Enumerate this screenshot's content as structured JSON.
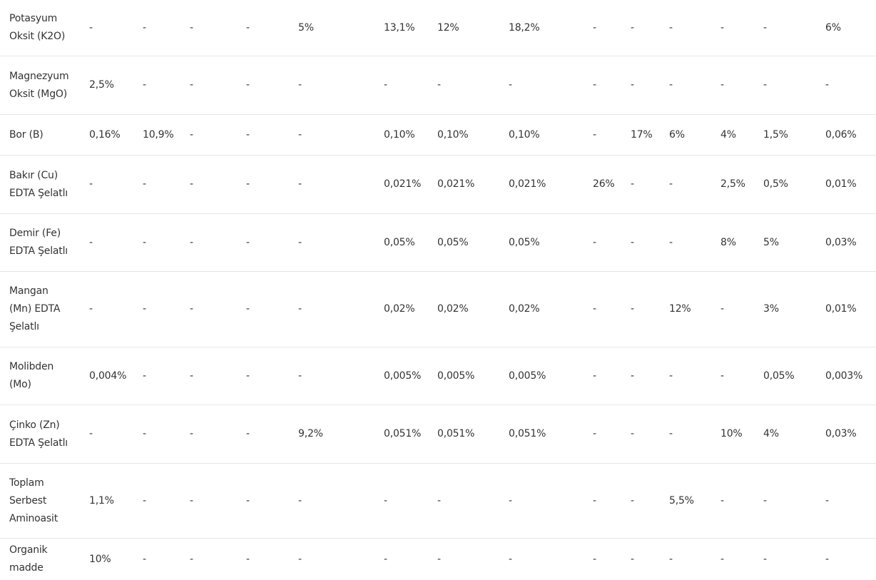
{
  "table": {
    "rows": [
      {
        "label_lines": [
          "Potasyum",
          "Oksit (K2O)"
        ],
        "values": [
          "-",
          "-",
          "-",
          "-",
          "5%",
          "13,1%",
          "12%",
          "18,2%",
          "-",
          "-",
          "-",
          "-",
          "-",
          "6%"
        ]
      },
      {
        "label_lines": [
          "Magnezyum",
          "Oksit (MgO)"
        ],
        "values": [
          "2,5%",
          "-",
          "-",
          "-",
          "-",
          "-",
          "-",
          "-",
          "-",
          "-",
          "-",
          "-",
          "-",
          "-"
        ]
      },
      {
        "label_lines": [
          "Bor (B)"
        ],
        "values": [
          "0,16%",
          "10,9%",
          "-",
          "-",
          "-",
          "0,10%",
          "0,10%",
          "0,10%",
          "-",
          "17%",
          "6%",
          "4%",
          "1,5%",
          "0,06%"
        ]
      },
      {
        "label_lines": [
          "Bakır (Cu)",
          "EDTA Şelatlı"
        ],
        "values": [
          "-",
          "-",
          "-",
          "-",
          "-",
          "0,021%",
          "0,021%",
          "0,021%",
          "26%",
          "-",
          "-",
          "2,5%",
          "0,5%",
          "0,01%"
        ]
      },
      {
        "label_lines": [
          "Demir (Fe)",
          "EDTA Şelatlı"
        ],
        "values": [
          "-",
          "-",
          "-",
          "-",
          "-",
          "0,05%",
          "0,05%",
          "0,05%",
          "-",
          "-",
          "-",
          "8%",
          "5%",
          "0,03%"
        ]
      },
      {
        "label_lines": [
          "Mangan",
          "(Mn) EDTA",
          "Şelatlı"
        ],
        "values": [
          "-",
          "-",
          "-",
          "-",
          "-",
          "0,02%",
          "0,02%",
          "0,02%",
          "-",
          "-",
          "12%",
          "-",
          "3%",
          "0,01%"
        ]
      },
      {
        "label_lines": [
          "Molibden",
          "(Mo)"
        ],
        "values": [
          "0,004%",
          "-",
          "-",
          "-",
          "-",
          "0,005%",
          "0,005%",
          "0,005%",
          "-",
          "-",
          "-",
          "-",
          "0,05%",
          "0,003%"
        ]
      },
      {
        "label_lines": [
          "Çinko (Zn)",
          "EDTA Şelatlı"
        ],
        "values": [
          "-",
          "-",
          "-",
          "-",
          "9,2%",
          "0,051%",
          "0,051%",
          "0,051%",
          "-",
          "-",
          "-",
          "10%",
          "4%",
          "0,03%"
        ]
      },
      {
        "label_lines": [
          "Toplam",
          "Serbest",
          "Aminoasit"
        ],
        "values": [
          "1,1%",
          "-",
          "-",
          "-",
          "-",
          "-",
          "-",
          "-",
          "-",
          "-",
          "5,5%",
          "-",
          "-",
          "-"
        ]
      },
      {
        "label_lines": [
          "Organik",
          "madde"
        ],
        "values": [
          "10%",
          "-",
          "-",
          "-",
          "-",
          "-",
          "-",
          "-",
          "-",
          "-",
          "-",
          "-",
          "-",
          "-"
        ]
      }
    ]
  }
}
